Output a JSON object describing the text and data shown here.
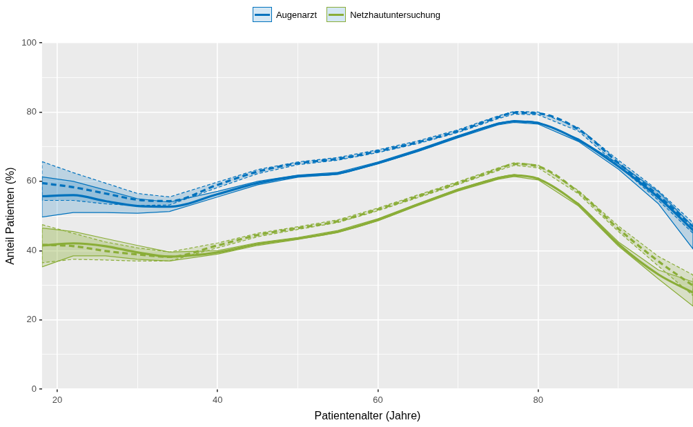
{
  "chart_data": {
    "type": "line",
    "xlabel": "Patientenalter (Jahre)",
    "ylabel": "Anteil Patienten (%)",
    "x": [
      18.1,
      22,
      26,
      30,
      34,
      40,
      45,
      50,
      55,
      60,
      65,
      70,
      75,
      77,
      80,
      85,
      90,
      95,
      99.3
    ],
    "xlim": [
      18.1,
      99.3
    ],
    "xticks": [
      20,
      {
        "value": 30,
        "label": null
      },
      40,
      {
        "value": 50,
        "label": null
      },
      60,
      {
        "value": 70,
        "label": null
      },
      80,
      {
        "value": 90,
        "label": null
      }
    ],
    "ylim": [
      0,
      100
    ],
    "yticks": [
      0,
      {
        "value": 10,
        "label": null
      },
      20,
      {
        "value": 30,
        "label": null
      },
      40,
      {
        "value": 50,
        "label": null
      },
      60,
      {
        "value": 70,
        "label": null
      },
      80,
      {
        "value": 90,
        "label": null
      },
      100
    ],
    "grid": true,
    "legend": "top",
    "line_style": "solid",
    "series": [
      {
        "name": "Augenarzt",
        "color": "#0072bd",
        "values": [
          55.7,
          56,
          54.3,
          52.9,
          52.7,
          56.3,
          59.5,
          61.5,
          62.3,
          65.3,
          68.9,
          72.9,
          76.6,
          77.3,
          76.8,
          71.9,
          64.3,
          55.3,
          45.9
        ],
        "lower": [
          49.7,
          51,
          51,
          50.8,
          51.3,
          55.5,
          59,
          61.2,
          62,
          65,
          68.6,
          72.6,
          76.3,
          77,
          76.5,
          71.5,
          63.5,
          53.5,
          40.5
        ],
        "upper": [
          61.3,
          60,
          57.5,
          55,
          54,
          57.1,
          60,
          61.8,
          62.6,
          65.6,
          69.2,
          73.2,
          76.9,
          77.6,
          77.1,
          72.3,
          65.1,
          57,
          47
        ]
      },
      {
        "color": "#0072bd",
        "line_style": "dashed",
        "values": [
          59.5,
          58.3,
          56.5,
          54.7,
          54.3,
          59,
          62.8,
          65.2,
          66.5,
          68.7,
          71.3,
          74.5,
          78.5,
          79.8,
          79.6,
          75,
          65.3,
          55.9,
          46.9
        ],
        "lower": [
          54.5,
          54.5,
          53.5,
          53,
          53.2,
          58.2,
          62.2,
          64.8,
          66.1,
          68.3,
          70.9,
          74.1,
          78.1,
          79.4,
          79.2,
          74.5,
          64.5,
          54.5,
          45
        ],
        "upper": [
          65.7,
          62.5,
          59.5,
          56.5,
          55.5,
          59.8,
          63.4,
          65.6,
          66.9,
          69.1,
          71.7,
          74.9,
          78.9,
          80.2,
          80,
          75.5,
          66.1,
          57.3,
          48
        ]
      },
      {
        "name": "Netzhautuntersuchung",
        "color": "#8aad38",
        "values": [
          41.5,
          42.1,
          41.3,
          39.5,
          38.3,
          39.5,
          41.9,
          43.5,
          45.5,
          48.9,
          53.3,
          57.5,
          60.9,
          61.7,
          60.7,
          53.3,
          41.9,
          33.1,
          27.9
        ],
        "lower": [
          35.3,
          38.5,
          38.5,
          37.5,
          37,
          39,
          41.5,
          43.2,
          45.2,
          48.6,
          53,
          57.2,
          60.6,
          61.4,
          60.4,
          52.9,
          41.3,
          31.8,
          24
        ],
        "upper": [
          46.5,
          45.5,
          43.5,
          41.5,
          39.6,
          40,
          42.3,
          43.8,
          45.8,
          49.2,
          53.6,
          57.8,
          61.2,
          62,
          61,
          53.7,
          42.5,
          34.4,
          31
        ]
      },
      {
        "color": "#8aad38",
        "line_style": "dashed",
        "values": [
          41.7,
          41.3,
          39.9,
          38.9,
          38.2,
          41.5,
          44.5,
          46.5,
          48.5,
          51.9,
          55.7,
          59.5,
          63.5,
          65,
          64.3,
          56.9,
          46.3,
          36.9,
          29.9
        ],
        "lower": [
          36.5,
          37.5,
          37.3,
          37,
          37,
          40.8,
          44,
          46.1,
          48.1,
          51.5,
          55.3,
          59.1,
          63.1,
          64.6,
          63.9,
          56.4,
          45.5,
          35.5,
          27
        ],
        "upper": [
          47.5,
          45,
          42.5,
          40.8,
          39.6,
          42.2,
          45,
          46.9,
          48.9,
          52.3,
          56.1,
          59.9,
          63.9,
          65.4,
          64.7,
          57.4,
          47.1,
          38.3,
          33
        ]
      }
    ]
  }
}
